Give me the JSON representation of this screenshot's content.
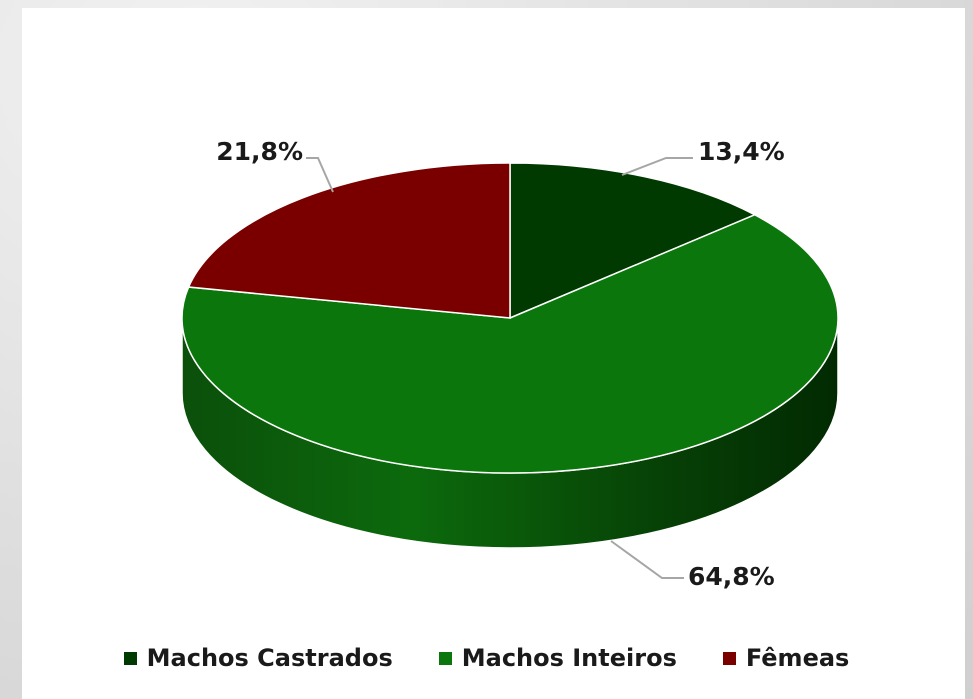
{
  "chart_data": {
    "type": "pie",
    "title": "",
    "categories": [
      "Machos Castrados",
      "Machos Inteiros",
      "Fêmeas"
    ],
    "values": [
      13.4,
      64.8,
      21.8
    ],
    "value_labels": [
      "13,4%",
      "64,8%",
      "21,8%"
    ],
    "colors": [
      "#013a01",
      "#0b760b",
      "#7a0000"
    ],
    "legend_placement": "bottom",
    "style": "3d"
  }
}
